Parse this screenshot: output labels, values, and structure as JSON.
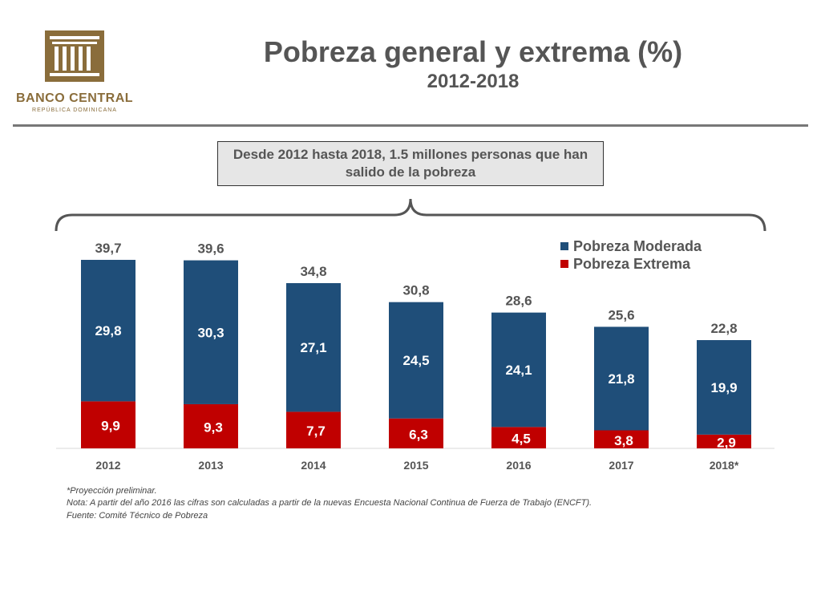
{
  "logo": {
    "name": "BANCO CENTRAL",
    "sub": "REPÚBLICA DOMINICANA",
    "color": "#8a6d3b"
  },
  "header": {
    "title": "Pobreza general y extrema (%)",
    "subtitle": "2012-2018"
  },
  "callout": "Desde 2012 hasta 2018, 1.5 millones personas que han salido de la pobreza",
  "chart_data": {
    "type": "bar",
    "stacked": true,
    "categories": [
      "2012",
      "2013",
      "2014",
      "2015",
      "2016",
      "2017",
      "2018*"
    ],
    "series": [
      {
        "name": "Pobreza Extrema",
        "color": "#c00000",
        "values": [
          9.9,
          9.3,
          7.7,
          6.3,
          4.5,
          3.8,
          2.9
        ],
        "labels": [
          "9,9",
          "9,3",
          "7,7",
          "6,3",
          "4,5",
          "3,8",
          "2,9"
        ]
      },
      {
        "name": "Pobreza Moderada",
        "color": "#1f4e79",
        "values": [
          29.8,
          30.3,
          27.1,
          24.5,
          24.1,
          21.8,
          19.9
        ],
        "labels": [
          "29,8",
          "30,3",
          "27,1",
          "24,5",
          "24,1",
          "21,8",
          "19,9"
        ]
      }
    ],
    "totals": [
      39.7,
      39.6,
      34.8,
      30.8,
      28.6,
      25.6,
      22.8
    ],
    "total_labels": [
      "39,7",
      "39,6",
      "34,8",
      "30,8",
      "28,6",
      "25,6",
      "22,8"
    ],
    "legend": [
      "Pobreza Moderada",
      "Pobreza Extrema"
    ],
    "legend_position": "top-right",
    "ylim": [
      0,
      45
    ],
    "grid": false
  },
  "notes": {
    "line1": "*Proyección preliminar.",
    "line2": "Nota: A partir del año 2016 las cifras son calculadas a partir de la nuevas Encuesta Nacional Continua de Fuerza de Trabajo (ENCFT).",
    "line3": "Fuente: Comité Técnico de Pobreza"
  }
}
